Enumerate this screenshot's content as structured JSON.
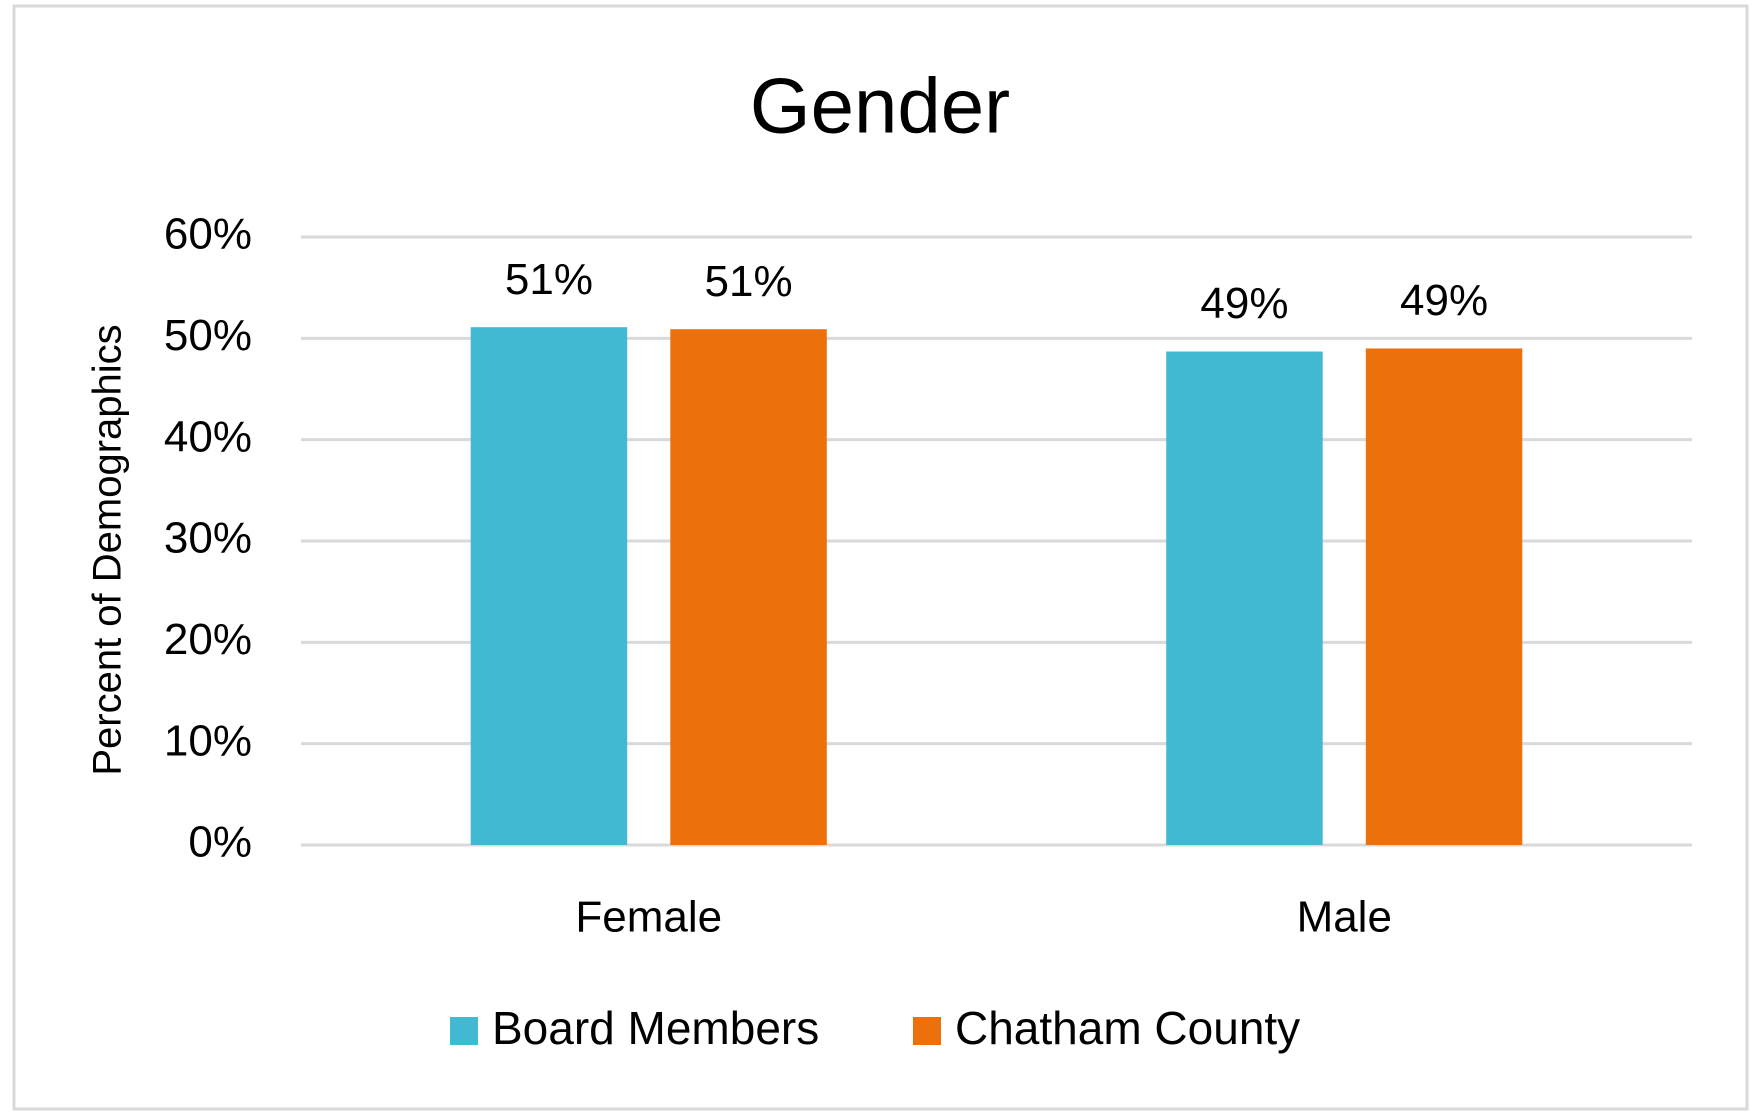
{
  "chart_data": {
    "type": "bar",
    "title": "Gender",
    "y_label": "Percent of Demographics",
    "categories": [
      "Female",
      "Male"
    ],
    "series": [
      {
        "name": "Board Members",
        "color": "#41b9d3",
        "values": [
          51.1,
          48.7
        ],
        "value_labels": [
          "51%",
          "49%"
        ]
      },
      {
        "name": "Chatham County",
        "color": "#ec700c",
        "values": [
          50.9,
          49.0
        ],
        "value_labels": [
          "51%",
          "49%"
        ]
      }
    ],
    "ylim": [
      0,
      60
    ],
    "yticks": [
      {
        "value": 0,
        "label": "0%"
      },
      {
        "value": 10,
        "label": "10%"
      },
      {
        "value": 20,
        "label": "20%"
      },
      {
        "value": 30,
        "label": "30%"
      },
      {
        "value": 40,
        "label": "40%"
      },
      {
        "value": 50,
        "label": "50%"
      },
      {
        "value": 60,
        "label": "60%"
      }
    ],
    "grid": true,
    "legend": "bottom"
  }
}
